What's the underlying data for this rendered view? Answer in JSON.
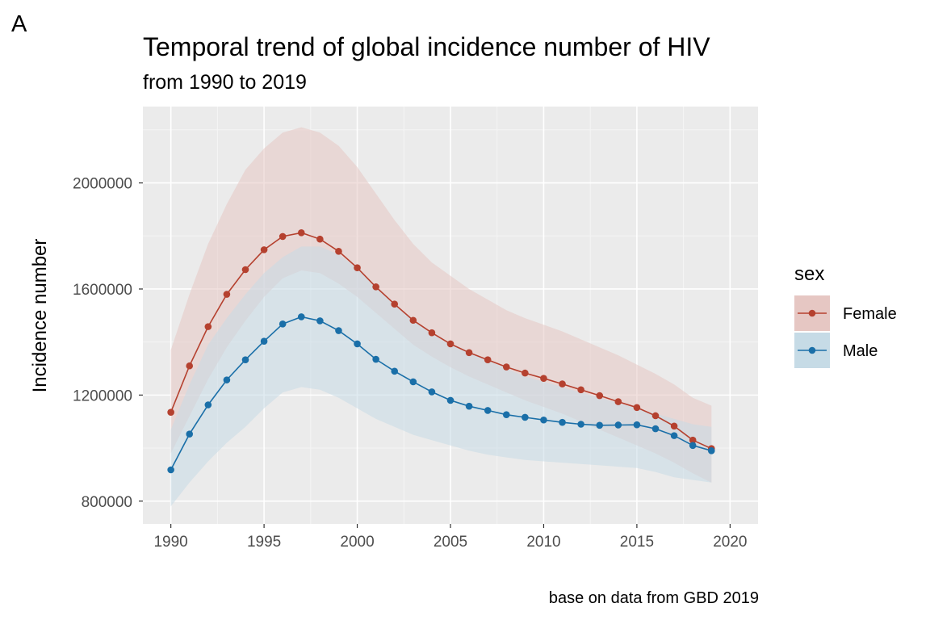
{
  "panel_label": "A",
  "caption": "base on data from GBD 2019",
  "chart_data": {
    "type": "line",
    "title": "Temporal trend of global incidence number of HIV",
    "subtitle": "from 1990 to 2019",
    "xlabel": "",
    "ylabel": "Incidence number",
    "x": [
      1990,
      1991,
      1992,
      1993,
      1994,
      1995,
      1996,
      1997,
      1998,
      1999,
      2000,
      2001,
      2002,
      2003,
      2004,
      2005,
      2006,
      2007,
      2008,
      2009,
      2010,
      2011,
      2012,
      2013,
      2014,
      2015,
      2016,
      2017,
      2018,
      2019
    ],
    "x_ticks": [
      1990,
      1995,
      2000,
      2005,
      2010,
      2015,
      2020
    ],
    "x_tick_labels": [
      "1990",
      "1995",
      "2000",
      "2005",
      "2010",
      "2015",
      "2020"
    ],
    "y_ticks": [
      800000,
      1200000,
      1600000,
      2000000
    ],
    "y_tick_labels": [
      "800000",
      "1200000",
      "1600000",
      "2000000"
    ],
    "xlim": [
      1988.5,
      2021.5
    ],
    "ylim": [
      714000,
      2288000
    ],
    "grid": true,
    "legend": {
      "title": "sex",
      "position": "right"
    },
    "series": [
      {
        "name": "Female",
        "color": "#b5412f",
        "ribbon_color": "#e6c7c3",
        "values": [
          1135000,
          1310000,
          1458000,
          1580000,
          1673000,
          1748000,
          1798000,
          1812000,
          1788000,
          1742000,
          1680000,
          1608000,
          1543000,
          1482000,
          1435000,
          1393000,
          1360000,
          1333000,
          1306000,
          1283000,
          1263000,
          1242000,
          1220000,
          1198000,
          1175000,
          1153000,
          1122000,
          1083000,
          1030000,
          998000
        ],
        "lower": [
          980000,
          1120000,
          1260000,
          1380000,
          1480000,
          1570000,
          1640000,
          1670000,
          1660000,
          1620000,
          1570000,
          1510000,
          1450000,
          1390000,
          1345000,
          1305000,
          1270000,
          1240000,
          1210000,
          1180000,
          1155000,
          1130000,
          1100000,
          1070000,
          1040000,
          1010000,
          980000,
          945000,
          905000,
          870000
        ],
        "upper": [
          1370000,
          1580000,
          1770000,
          1920000,
          2050000,
          2130000,
          2190000,
          2210000,
          2190000,
          2140000,
          2060000,
          1960000,
          1860000,
          1770000,
          1700000,
          1650000,
          1600000,
          1560000,
          1520000,
          1490000,
          1465000,
          1440000,
          1410000,
          1380000,
          1350000,
          1315000,
          1280000,
          1240000,
          1190000,
          1160000
        ]
      },
      {
        "name": "Male",
        "color": "#1a6fa8",
        "ribbon_color": "#c6dbe6",
        "values": [
          918000,
          1053000,
          1163000,
          1257000,
          1333000,
          1403000,
          1468000,
          1495000,
          1480000,
          1443000,
          1393000,
          1335000,
          1290000,
          1250000,
          1212000,
          1180000,
          1158000,
          1142000,
          1126000,
          1116000,
          1106000,
          1097000,
          1090000,
          1086000,
          1087000,
          1088000,
          1073000,
          1047000,
          1010000,
          990000
        ],
        "lower": [
          780000,
          870000,
          950000,
          1020000,
          1080000,
          1150000,
          1210000,
          1230000,
          1220000,
          1190000,
          1150000,
          1110000,
          1080000,
          1050000,
          1030000,
          1010000,
          990000,
          975000,
          965000,
          955000,
          950000,
          945000,
          940000,
          935000,
          930000,
          925000,
          910000,
          890000,
          880000,
          870000
        ],
        "upper": [
          1070000,
          1240000,
          1390000,
          1490000,
          1580000,
          1660000,
          1720000,
          1760000,
          1760000,
          1730000,
          1680000,
          1610000,
          1540000,
          1480000,
          1430000,
          1390000,
          1360000,
          1330000,
          1300000,
          1270000,
          1250000,
          1230000,
          1210000,
          1190000,
          1170000,
          1150000,
          1130000,
          1110000,
          1090000,
          1080000
        ]
      }
    ]
  }
}
